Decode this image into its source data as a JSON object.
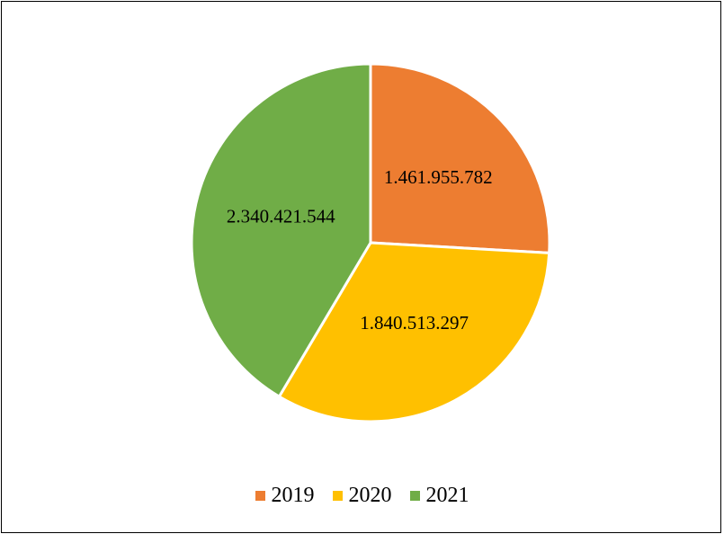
{
  "chart_data": {
    "type": "pie",
    "title": "",
    "categories": [
      "2019",
      "2020",
      "2021"
    ],
    "values": [
      1461955782,
      1840513297,
      2340421544
    ],
    "value_labels": [
      "1.461.955.782",
      "1.840.513.297",
      "2.340.421.544"
    ],
    "colors": [
      "#ED7D31",
      "#FFC000",
      "#70AD47"
    ],
    "legend_position": "bottom",
    "start_angle_deg": 0,
    "direction": "clockwise"
  }
}
